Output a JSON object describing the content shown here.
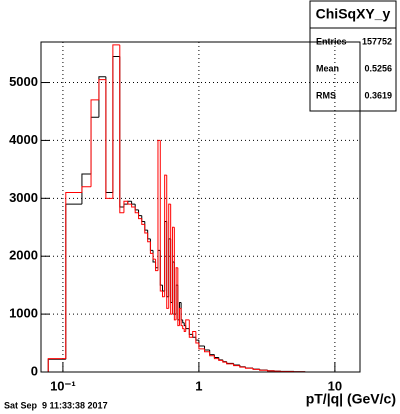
{
  "chart_data": {
    "type": "histogram",
    "title": "ChiSqXY_y",
    "x_label": "pT/|q| (GeV/c)",
    "footer": "Sat Sep  9 11:33:38 2017",
    "stats": [
      {
        "label": "Entries",
        "value": 157752
      },
      {
        "label": "Mean",
        "value": 0.5256
      },
      {
        "label": "RMS",
        "value": 0.3619
      }
    ],
    "log_x": true,
    "grid": true,
    "xlim": [
      0.069,
      15.3
    ],
    "xticks": [
      {
        "value": 0.1,
        "label": "10⁻¹"
      },
      1,
      10
    ],
    "ylim": [
      0,
      5700
    ],
    "yticks": [
      0,
      1000,
      2000,
      3000,
      4000,
      5000
    ],
    "bins": [
      0.078,
      0.105,
      0.138,
      0.161,
      0.184,
      0.207,
      0.233,
      0.262,
      0.281,
      0.3,
      0.32,
      0.34,
      0.36,
      0.38,
      0.4,
      0.42,
      0.44,
      0.46,
      0.48,
      0.5,
      0.52,
      0.54,
      0.56,
      0.58,
      0.6,
      0.62,
      0.64,
      0.66,
      0.68,
      0.7,
      0.72,
      0.74,
      0.76,
      0.78,
      0.8,
      0.85,
      0.9,
      0.95,
      1.0,
      1.1,
      1.2,
      1.3,
      1.4,
      1.5,
      1.6,
      1.8,
      2.0,
      2.2,
      2.5,
      2.8,
      3.2,
      3.6,
      4.0,
      5.0,
      6.0
    ],
    "series": [
      {
        "color": "#000000",
        "values": [
          220,
          2900,
          3420,
          4400,
          5100,
          3100,
          5450,
          2850,
          2900,
          2950,
          2900,
          2800,
          2700,
          2600,
          2450,
          2300,
          2100,
          1900,
          1800,
          2100,
          1500,
          1400,
          2600,
          1300,
          2300,
          1200,
          1900,
          1000,
          1500,
          900,
          1200,
          900,
          850,
          800,
          750,
          650,
          600,
          550,
          450,
          380,
          300,
          250,
          210,
          180,
          150,
          120,
          90,
          70,
          50,
          35,
          22,
          15,
          10,
          5
        ]
      },
      {
        "color": "#ff0000",
        "values": [
          230,
          3100,
          3200,
          4700,
          5050,
          3000,
          5650,
          2750,
          2950,
          2900,
          2850,
          2750,
          2650,
          2550,
          2400,
          2250,
          2050,
          1950,
          1750,
          4000,
          1400,
          1300,
          3400,
          1100,
          2900,
          1000,
          2500,
          900,
          1800,
          800,
          1100,
          800,
          750,
          700,
          900,
          600,
          700,
          500,
          400,
          350,
          280,
          230,
          200,
          170,
          140,
          110,
          85,
          65,
          45,
          30,
          20,
          12,
          8,
          4
        ]
      }
    ]
  }
}
